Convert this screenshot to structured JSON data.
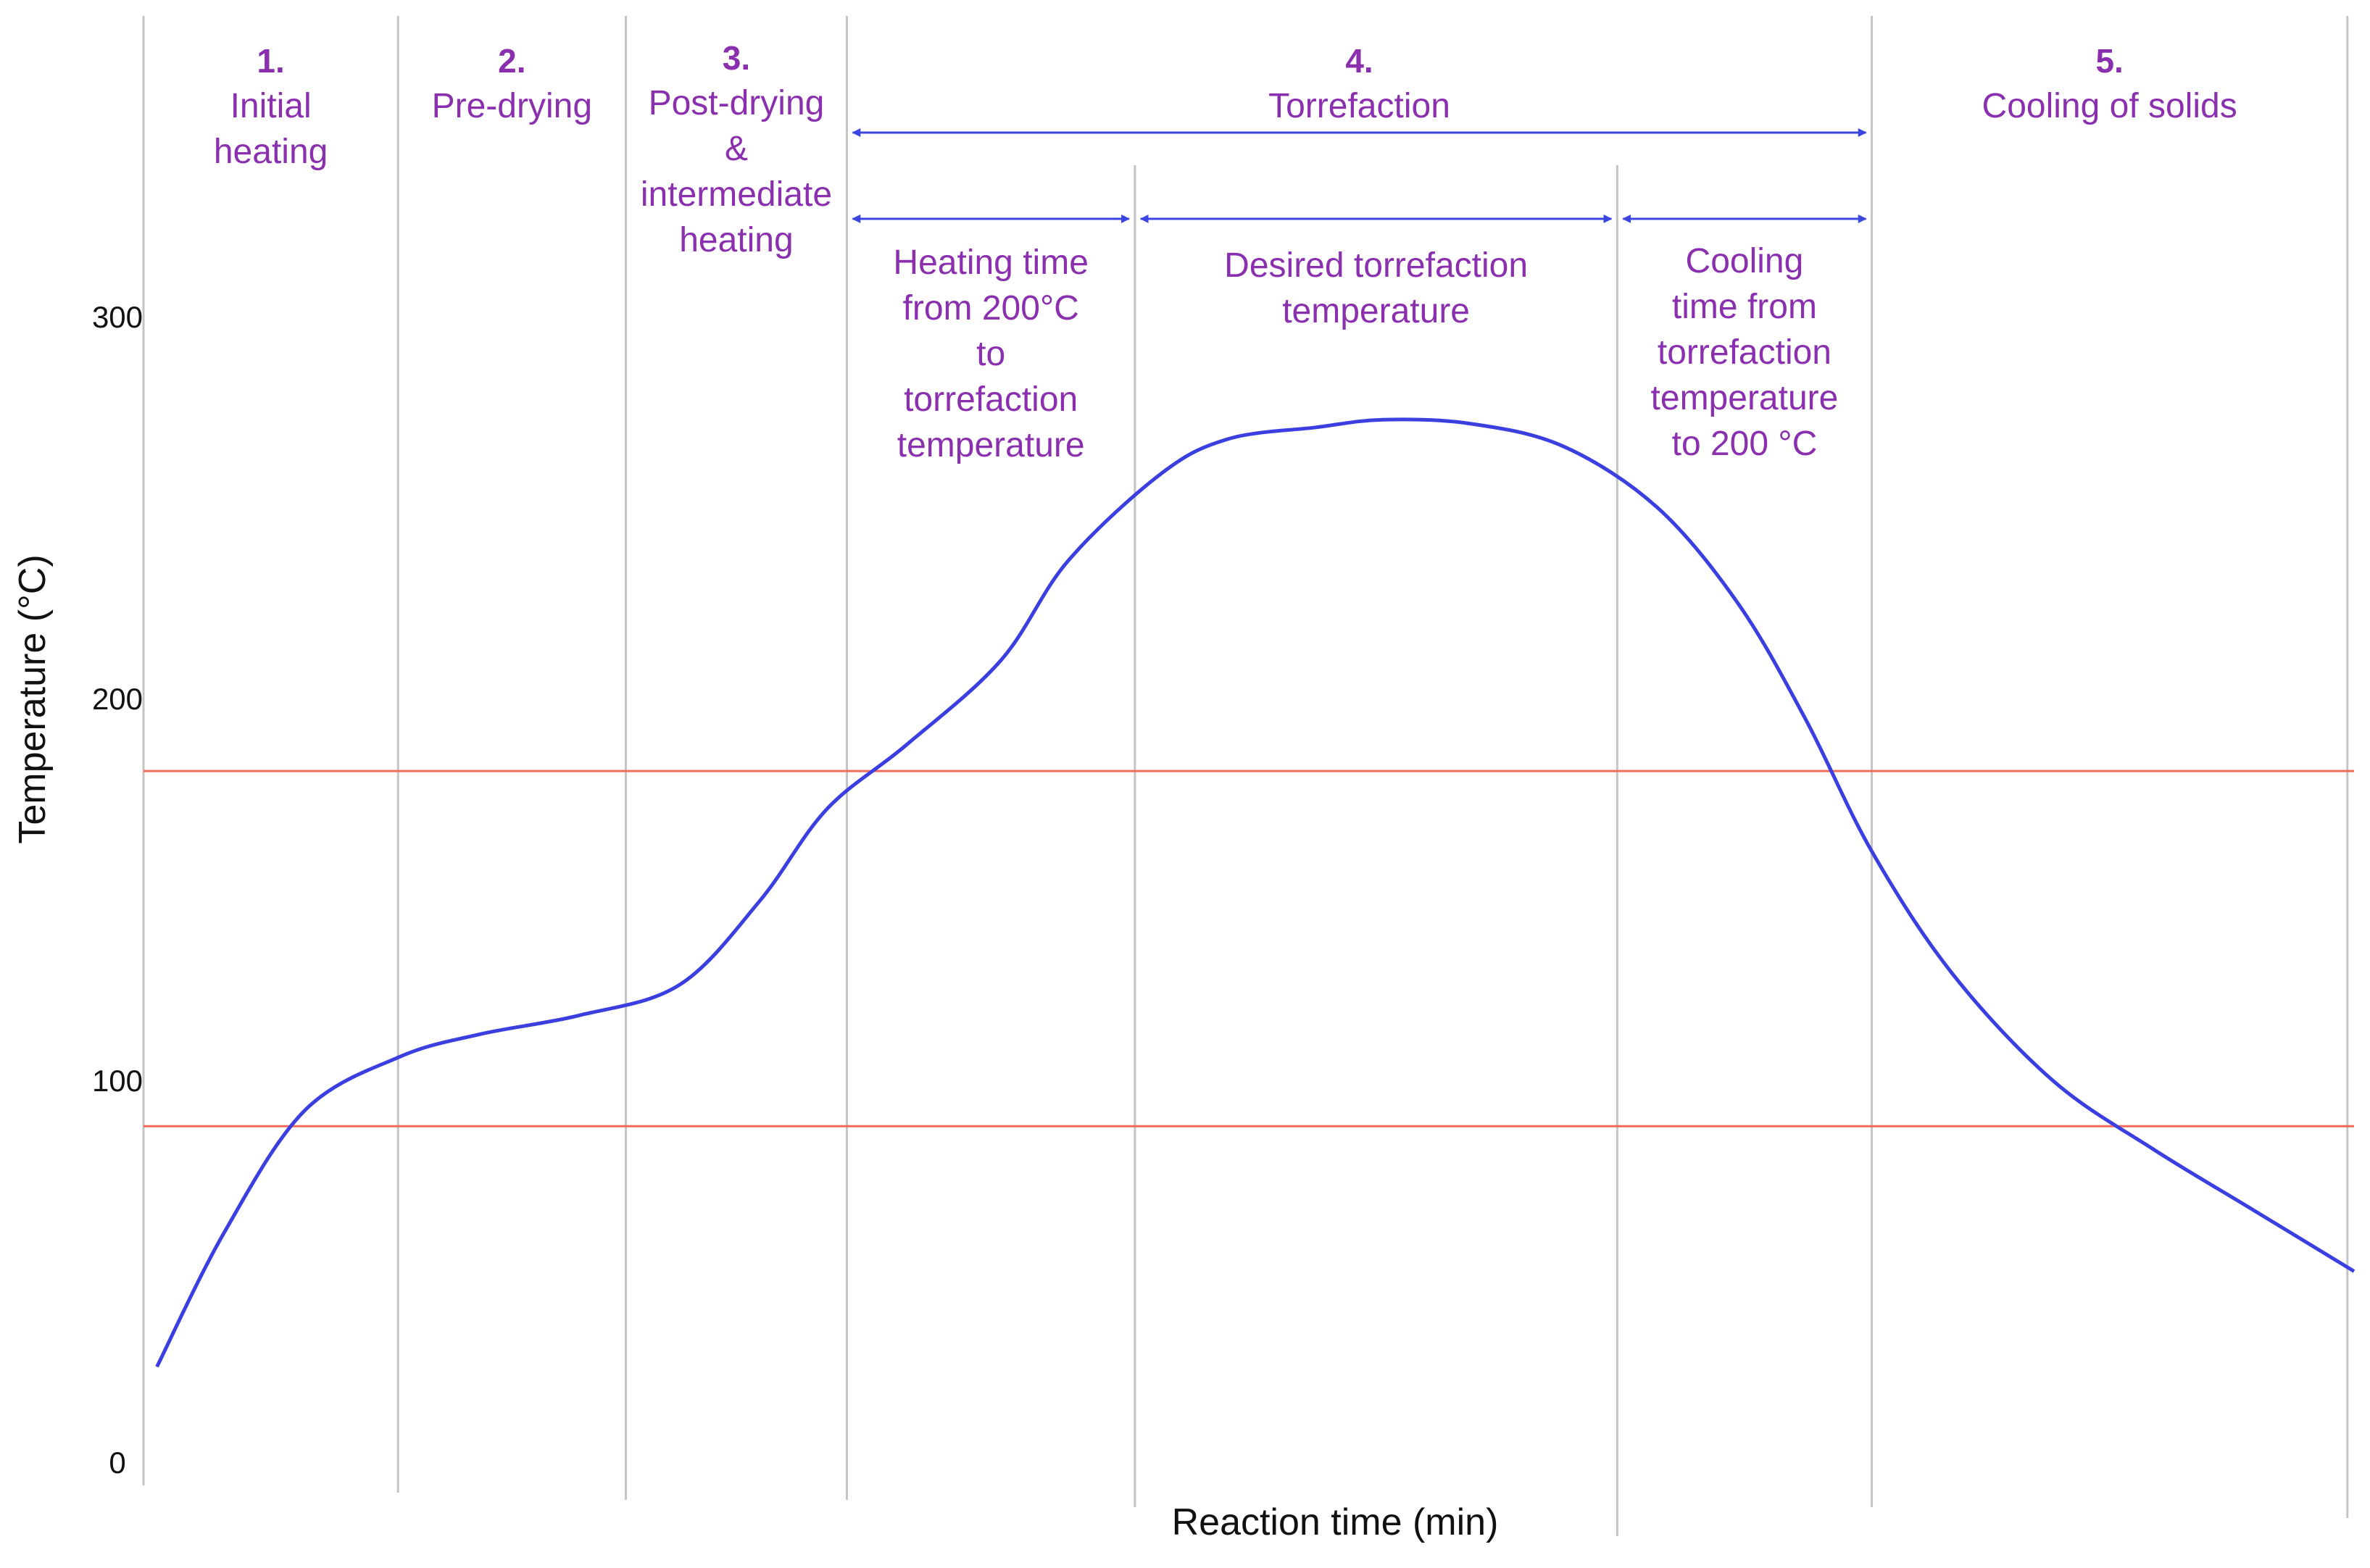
{
  "colors": {
    "curve": "#3b3fe0",
    "threshold": "#f26b5b",
    "label": "#8a2fae",
    "arrow": "#3b46e0",
    "divider": "#c4c4c4"
  },
  "chart_data": {
    "type": "line",
    "title": "",
    "xlabel": "Reaction time (min)",
    "ylabel": "Temperature (°C)",
    "ylim": [
      0,
      310
    ],
    "yticks": [
      "0",
      "100",
      "200",
      "300"
    ],
    "x_ticks_shown": false,
    "grid": false,
    "legend": "none",
    "series": [
      {
        "values_note": "",
        "x": [
          0.2,
          1.2,
          2.4,
          3.8,
          5.0,
          6.5,
          8.0,
          9.2,
          10.2,
          11.4,
          12.8,
          13.8,
          15.2,
          16.2,
          17.5,
          18.5,
          19.8,
          21.2,
          22.6,
          23.8,
          24.8,
          25.8,
          27.0,
          28.5,
          30.0,
          31.5,
          33.0
        ],
        "y": [
          25,
          60,
          92,
          106,
          112,
          117,
          125,
          147,
          171,
          188,
          210,
          236,
          259,
          268,
          271,
          273,
          272,
          266,
          250,
          225,
          195,
          160,
          128,
          100,
          82,
          66,
          50
        ]
      }
    ],
    "threshold_lines": [
      88,
      181
    ],
    "stage_boundaries_x": [
      0,
      3.8,
      7.2,
      10.5,
      14.8,
      22.0,
      25.8,
      32.9
    ],
    "stages": [
      {
        "number": "1.",
        "lines": [
          "Initial",
          "heating"
        ]
      },
      {
        "number": "2.",
        "lines": [
          "Pre-drying"
        ]
      },
      {
        "number": "3.",
        "lines": [
          "Post-drying",
          "&",
          "intermediate",
          "heating"
        ]
      },
      {
        "number": "4.",
        "lines": [
          "Torrefaction"
        ]
      },
      {
        "number": "5.",
        "lines": [
          "Cooling of solids"
        ]
      }
    ],
    "substages": [
      {
        "lines": [
          "Heating time",
          "from 200°C",
          "to",
          "torrefaction",
          "temperature"
        ]
      },
      {
        "lines": [
          "Desired torrefaction",
          "temperature"
        ]
      },
      {
        "lines": [
          "Cooling",
          "time from",
          "torrefaction",
          "temperature",
          "to 200 °C"
        ]
      }
    ]
  }
}
